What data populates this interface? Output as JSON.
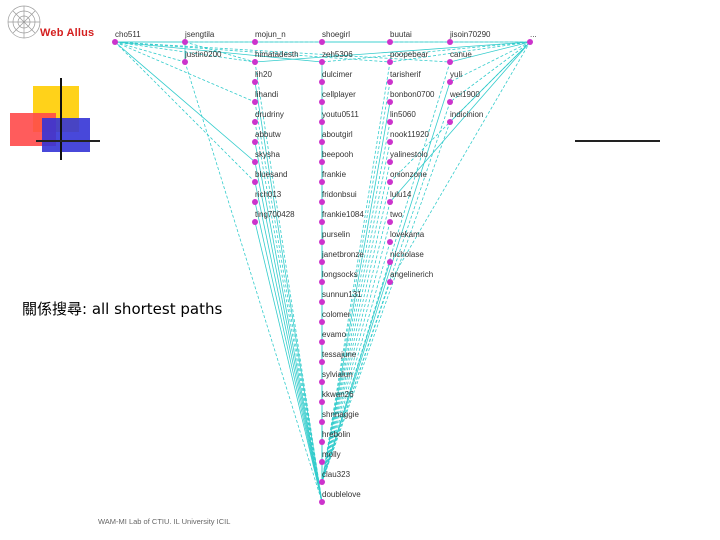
{
  "slide": {
    "logo_text": "Web Allus",
    "caption": "關係搜尋: all shortest paths",
    "credit": "WAM-MI Lab of CTIU. IL University ICIL"
  },
  "colors": {
    "edge": "#33cccc",
    "node": "#cc33cc",
    "logo_red": "#d42020"
  },
  "graph": {
    "nodes": [
      {
        "id": "cho511",
        "label": "cho511"
      },
      {
        "id": "jsengtila",
        "label": "jsengtila"
      },
      {
        "id": "mojun_n",
        "label": "mojun_n"
      },
      {
        "id": "shoegirl",
        "label": "shoegirl"
      },
      {
        "id": "buutai",
        "label": "buutai"
      },
      {
        "id": "jisoin70290",
        "label": "jisoin70290"
      },
      {
        "id": "right-node",
        "label": "..."
      },
      {
        "id": "justin0200",
        "label": "justin0200"
      },
      {
        "id": "himatadesth",
        "label": "himatadesth"
      },
      {
        "id": "zeh5306",
        "label": "zeh5306"
      },
      {
        "id": "poopebear",
        "label": "poopebear"
      },
      {
        "id": "canue",
        "label": "canue"
      },
      {
        "id": "lih20",
        "label": "lih20"
      },
      {
        "id": "dulcimer",
        "label": "dulcimer"
      },
      {
        "id": "tarisherif",
        "label": "tarisherif"
      },
      {
        "id": "yuli",
        "label": "yuli"
      },
      {
        "id": "lihandi",
        "label": "lihandi"
      },
      {
        "id": "cellplayer",
        "label": "cellplayer"
      },
      {
        "id": "bonbon0700",
        "label": "bonbon0700"
      },
      {
        "id": "wei1900",
        "label": "wei1900"
      },
      {
        "id": "drudriny",
        "label": "drudriny"
      },
      {
        "id": "youtu0511",
        "label": "youtu0511"
      },
      {
        "id": "lin5060",
        "label": "lin5060"
      },
      {
        "id": "indicinion",
        "label": "indicinion"
      },
      {
        "id": "abbutw",
        "label": "abbutw"
      },
      {
        "id": "aboutgirl",
        "label": "aboutgirl"
      },
      {
        "id": "nook11920",
        "label": "nook11920"
      },
      {
        "id": "skysha",
        "label": "skysha"
      },
      {
        "id": "beepooh",
        "label": "beepooh"
      },
      {
        "id": "yalinestolo",
        "label": "yalinestolo"
      },
      {
        "id": "bluesand",
        "label": "bluesand"
      },
      {
        "id": "frankie",
        "label": "frankie"
      },
      {
        "id": "onionzone",
        "label": "onionzone"
      },
      {
        "id": "rich013",
        "label": "rich013"
      },
      {
        "id": "fridonbsui",
        "label": "fridonbsui"
      },
      {
        "id": "lulu14",
        "label": "lulu14"
      },
      {
        "id": "ting700428",
        "label": "ting700428"
      },
      {
        "id": "frankie1084",
        "label": "frankie1084"
      },
      {
        "id": "two",
        "label": "two"
      },
      {
        "id": "purselin",
        "label": "purselin"
      },
      {
        "id": "lovekama",
        "label": "lovekama"
      },
      {
        "id": "janetbronze",
        "label": "janetbronze"
      },
      {
        "id": "nicholase",
        "label": "nicholase"
      },
      {
        "id": "longsocks",
        "label": "longsocks"
      },
      {
        "id": "angelinerich",
        "label": "angelinerich"
      },
      {
        "id": "sunnun131",
        "label": "sunnun131"
      },
      {
        "id": "colomer",
        "label": "colomer"
      },
      {
        "id": "evamo",
        "label": "evamo"
      },
      {
        "id": "tessajune",
        "label": "tessajune"
      },
      {
        "id": "sylvialun",
        "label": "sylvialun"
      },
      {
        "id": "kkwan26",
        "label": "kkwan26"
      },
      {
        "id": "shnnaggie",
        "label": "shnnaggie"
      },
      {
        "id": "hrebolin",
        "label": "hrebolin"
      },
      {
        "id": "molly",
        "label": "molly"
      },
      {
        "id": "clau323",
        "label": "clau323"
      },
      {
        "id": "doublelove",
        "label": "doublelove"
      }
    ]
  }
}
